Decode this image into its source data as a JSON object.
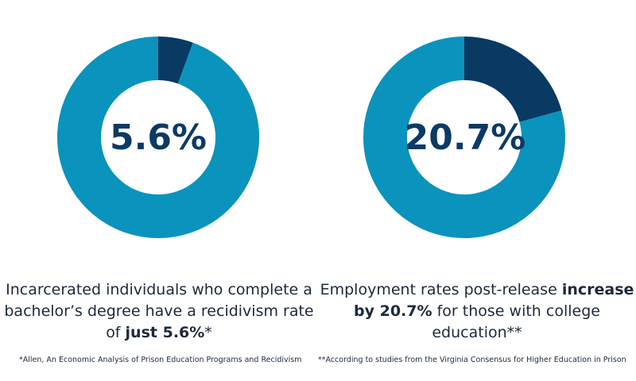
{
  "chart_data": [
    {
      "type": "pie",
      "variant": "donut",
      "center_label": "5.6%",
      "slices": [
        {
          "label": "highlighted",
          "value": 5.6,
          "color": "#093a64"
        },
        {
          "label": "rest",
          "value": 94.4,
          "color": "#0a93bc"
        }
      ],
      "caption_parts": [
        {
          "text": "Incarcerated individuals who complete a bachelor’s degree have a recidivism rate of ",
          "bold": false
        },
        {
          "text": "just 5.6%",
          "bold": true
        },
        {
          "text": "*",
          "bold": false
        }
      ],
      "footnote": "*Allen, An Economic Analysis of Prison Education Programs and Recidivism"
    },
    {
      "type": "pie",
      "variant": "donut",
      "center_label": "20.7%",
      "slices": [
        {
          "label": "highlighted",
          "value": 20.7,
          "color": "#093a64"
        },
        {
          "label": "rest",
          "value": 79.3,
          "color": "#0a93bc"
        }
      ],
      "caption_parts": [
        {
          "text": "Employment rates post-release ",
          "bold": false
        },
        {
          "text": "increase by 20.7%",
          "bold": true
        },
        {
          "text": " for those with college education**",
          "bold": false
        }
      ],
      "footnote": "**According to studies from the Virginia Consensus for Higher Education in Prison"
    }
  ]
}
